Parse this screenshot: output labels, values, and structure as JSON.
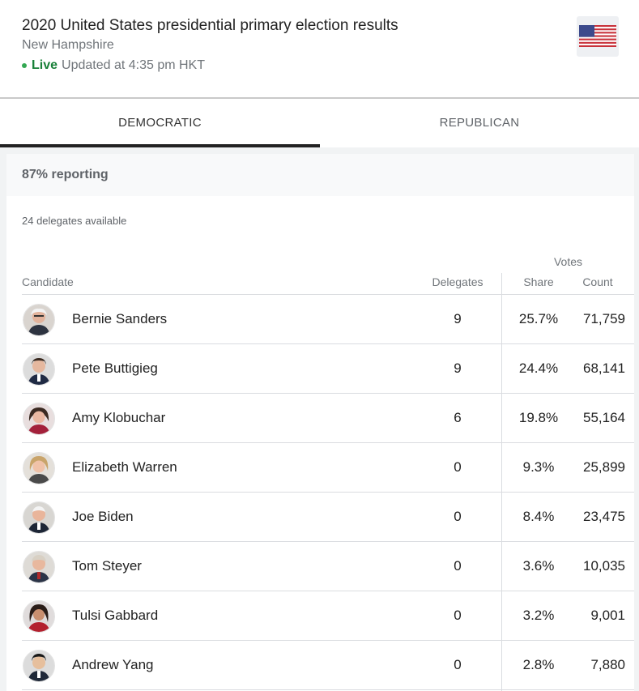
{
  "header": {
    "title": "2020 United States presidential primary election results",
    "state": "New Hampshire",
    "live_label": "Live",
    "updated_text": "Updated at 4:35 pm HKT",
    "flag_icon": "us-flag-icon"
  },
  "tabs": [
    {
      "label": "DEMOCRATIC",
      "active": true
    },
    {
      "label": "REPUBLICAN",
      "active": false
    }
  ],
  "summary": {
    "reporting": "87% reporting",
    "delegates_available": "24 delegates available"
  },
  "table": {
    "votes_header": "Votes",
    "columns": {
      "candidate": "Candidate",
      "delegates": "Delegates",
      "share": "Share",
      "count": "Count"
    },
    "rows": [
      {
        "name": "Bernie Sanders",
        "delegates": "9",
        "share": "25.7%",
        "count": "71,759",
        "avatar_icon": "bernie-sanders-avatar"
      },
      {
        "name": "Pete Buttigieg",
        "delegates": "9",
        "share": "24.4%",
        "count": "68,141",
        "avatar_icon": "pete-buttigieg-avatar"
      },
      {
        "name": "Amy Klobuchar",
        "delegates": "6",
        "share": "19.8%",
        "count": "55,164",
        "avatar_icon": "amy-klobuchar-avatar"
      },
      {
        "name": "Elizabeth Warren",
        "delegates": "0",
        "share": "9.3%",
        "count": "25,899",
        "avatar_icon": "elizabeth-warren-avatar"
      },
      {
        "name": "Joe Biden",
        "delegates": "0",
        "share": "8.4%",
        "count": "23,475",
        "avatar_icon": "joe-biden-avatar"
      },
      {
        "name": "Tom Steyer",
        "delegates": "0",
        "share": "3.6%",
        "count": "10,035",
        "avatar_icon": "tom-steyer-avatar"
      },
      {
        "name": "Tulsi Gabbard",
        "delegates": "0",
        "share": "3.2%",
        "count": "9,001",
        "avatar_icon": "tulsi-gabbard-avatar"
      },
      {
        "name": "Andrew Yang",
        "delegates": "0",
        "share": "2.8%",
        "count": "7,880",
        "avatar_icon": "andrew-yang-avatar"
      }
    ]
  },
  "colors": {
    "live_green": "#188038",
    "tab_underline": "#222222",
    "muted_text": "#70757a"
  }
}
